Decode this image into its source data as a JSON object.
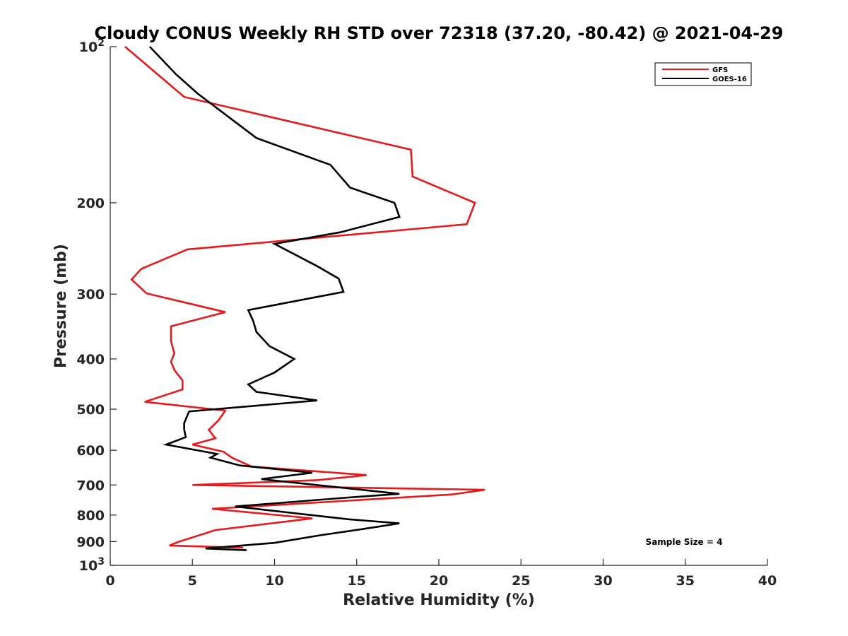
{
  "chart_data": {
    "type": "line",
    "title": "Cloudy CONUS Weekly RH STD over 72318 (37.20, -80.42) @ 2021-04-29",
    "xlabel": "Relative Humidity (%)",
    "ylabel": "Pressure (mb)",
    "xlim": [
      0,
      40
    ],
    "ylim": [
      100,
      1000
    ],
    "yscale": "log",
    "y_reversed": true,
    "grid": false,
    "legend_position": "top-right",
    "x_ticks": [
      {
        "value": 0,
        "label": "0"
      },
      {
        "value": 5,
        "label": "5"
      },
      {
        "value": 10,
        "label": "10"
      },
      {
        "value": 15,
        "label": "15"
      },
      {
        "value": 20,
        "label": "20"
      },
      {
        "value": 25,
        "label": "25"
      },
      {
        "value": 30,
        "label": "30"
      },
      {
        "value": 35,
        "label": "35"
      },
      {
        "value": 40,
        "label": "40"
      }
    ],
    "y_ticks": [
      {
        "value": 100,
        "base": "10",
        "exp": "2"
      },
      {
        "value": 200,
        "label": "200"
      },
      {
        "value": 300,
        "label": "300"
      },
      {
        "value": 400,
        "label": "400"
      },
      {
        "value": 500,
        "label": "500"
      },
      {
        "value": 600,
        "label": "600"
      },
      {
        "value": 700,
        "label": "700"
      },
      {
        "value": 800,
        "label": "800"
      },
      {
        "value": 900,
        "label": "900"
      },
      {
        "value": 1000,
        "base": "10",
        "exp": "3"
      }
    ],
    "series": [
      {
        "name": "GFS",
        "color": "#e41a1c",
        "points": [
          [
            0.9,
            100
          ],
          [
            4.5,
            125
          ],
          [
            18.3,
            158
          ],
          [
            18.4,
            178
          ],
          [
            22.2,
            200
          ],
          [
            21.7,
            220
          ],
          [
            4.7,
            246
          ],
          [
            1.9,
            268
          ],
          [
            1.3,
            281
          ],
          [
            2.2,
            299
          ],
          [
            7.0,
            325
          ],
          [
            3.7,
            346
          ],
          [
            3.7,
            370
          ],
          [
            3.9,
            390
          ],
          [
            3.7,
            405
          ],
          [
            3.9,
            420
          ],
          [
            4.4,
            440
          ],
          [
            4.4,
            458
          ],
          [
            2.1,
            484
          ],
          [
            7.0,
            503
          ],
          [
            6.6,
            525
          ],
          [
            6.0,
            548
          ],
          [
            6.4,
            569
          ],
          [
            5.0,
            585
          ],
          [
            6.9,
            604
          ],
          [
            7.4,
            620
          ],
          [
            8.6,
            645
          ],
          [
            15.6,
            670
          ],
          [
            12.6,
            685
          ],
          [
            5.0,
            700
          ],
          [
            22.8,
            715
          ],
          [
            20.8,
            730
          ],
          [
            6.2,
            778
          ],
          [
            12.3,
            812
          ],
          [
            6.4,
            855
          ],
          [
            4.2,
            900
          ],
          [
            3.6,
            916
          ],
          [
            8.1,
            925
          ]
        ]
      },
      {
        "name": "GOES-16",
        "color": "#000000",
        "points": [
          [
            2.4,
            100
          ],
          [
            4.0,
            113
          ],
          [
            5.3,
            123
          ],
          [
            8.9,
            150
          ],
          [
            13.4,
            169
          ],
          [
            14.6,
            187
          ],
          [
            17.3,
            200
          ],
          [
            17.6,
            213
          ],
          [
            14.0,
            228
          ],
          [
            10.0,
            240
          ],
          [
            12.6,
            265
          ],
          [
            13.9,
            280
          ],
          [
            14.2,
            297
          ],
          [
            8.4,
            322
          ],
          [
            8.7,
            338
          ],
          [
            8.9,
            355
          ],
          [
            9.7,
            378
          ],
          [
            11.2,
            400
          ],
          [
            10.0,
            425
          ],
          [
            8.4,
            448
          ],
          [
            8.9,
            463
          ],
          [
            12.6,
            481
          ],
          [
            4.8,
            505
          ],
          [
            4.5,
            532
          ],
          [
            4.5,
            547
          ],
          [
            4.6,
            566
          ],
          [
            3.4,
            585
          ],
          [
            6.5,
            610
          ],
          [
            6.1,
            620
          ],
          [
            7.9,
            642
          ],
          [
            12.3,
            663
          ],
          [
            9.2,
            682
          ],
          [
            17.6,
            728
          ],
          [
            14.5,
            740
          ],
          [
            7.6,
            770
          ],
          [
            14.5,
            815
          ],
          [
            17.6,
            830
          ],
          [
            15.5,
            850
          ],
          [
            12.8,
            875
          ],
          [
            10.0,
            905
          ],
          [
            5.8,
            928
          ],
          [
            8.3,
            935
          ]
        ]
      }
    ],
    "annotations": [
      "Sample Size = 4"
    ]
  }
}
